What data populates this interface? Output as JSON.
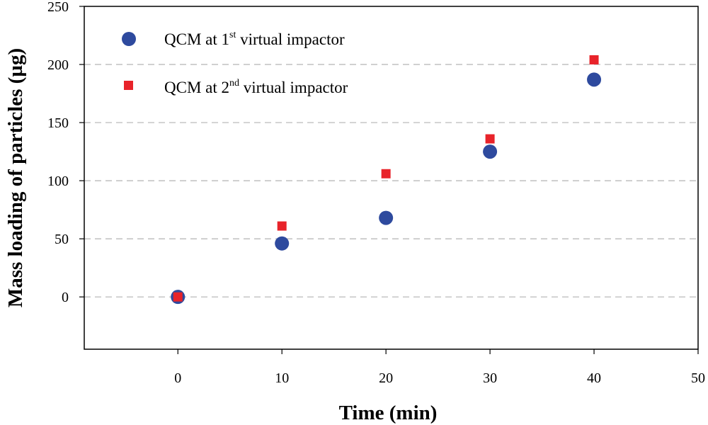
{
  "chart_data": {
    "type": "scatter",
    "title": "",
    "xlabel": "Time (min)",
    "ylabel": "Mass loading of particles (µg)",
    "xlim": [
      -9,
      50
    ],
    "ylim": [
      -45,
      250
    ],
    "xticks": [
      0,
      10,
      20,
      30,
      40,
      50
    ],
    "yticks": [
      0,
      50,
      100,
      150,
      200,
      250
    ],
    "grid": "horizontal dashed",
    "legend_position": "top-left",
    "series": [
      {
        "name": "QCM at 1st virtual impactor",
        "legend_prefix": "QCM at 1",
        "legend_sup": "st",
        "legend_suffix": " virtual impactor",
        "marker": "circle",
        "color": "#2E4A9E",
        "x": [
          0,
          10,
          20,
          30,
          40
        ],
        "y": [
          0,
          46,
          68,
          125,
          187
        ]
      },
      {
        "name": "QCM at 2nd virtual impactor",
        "legend_prefix": "QCM at 2",
        "legend_sup": "nd",
        "legend_suffix": " virtual impactor",
        "marker": "square",
        "color": "#E8232A",
        "x": [
          0,
          10,
          20,
          30,
          40
        ],
        "y": [
          0,
          61,
          106,
          136,
          204
        ]
      }
    ]
  }
}
